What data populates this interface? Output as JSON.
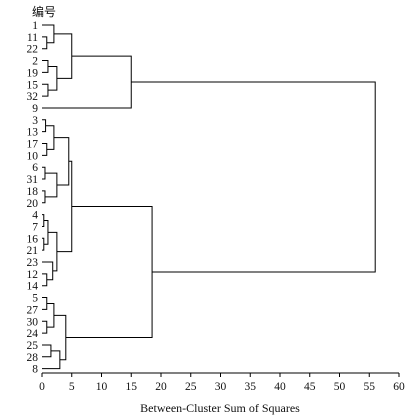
{
  "chart_data": {
    "type": "dendrogram",
    "title": "",
    "ylabel": "编号",
    "xlabel": "Between-Cluster Sum of Squares",
    "xlim": [
      0,
      60
    ],
    "xticks": [
      0,
      5,
      10,
      15,
      20,
      25,
      30,
      35,
      40,
      45,
      50,
      55,
      60
    ],
    "orientation": "horizontal",
    "grid": false,
    "legend": "none",
    "line_color": "#000000",
    "leaves": [
      "1",
      "11",
      "22",
      "2",
      "19",
      "15",
      "32",
      "9",
      "3",
      "13",
      "17",
      "10",
      "6",
      "31",
      "18",
      "20",
      "4",
      "7",
      "16",
      "21",
      "23",
      "12",
      "14",
      "5",
      "27",
      "30",
      "24",
      "25",
      "28",
      "8"
    ],
    "tree": [
      56,
      [
        15,
        [
          5,
          [
            2,
            "1",
            [
              0.8,
              "11",
              "22"
            ]
          ],
          [
            2.5,
            [
              1,
              "2",
              "19"
            ],
            [
              1,
              "15",
              "32"
            ]
          ]
        ],
        "9"
      ],
      [
        18.5,
        [
          5,
          [
            4.5,
            [
              2,
              [
                0.6,
                "3",
                "13"
              ],
              [
                0.8,
                "17",
                "10"
              ]
            ],
            [
              2.5,
              [
                0.5,
                "6",
                "31"
              ],
              [
                0.5,
                "18",
                "20"
              ]
            ]
          ],
          [
            2.5,
            [
              1,
              [
                0.3,
                "4",
                "7"
              ],
              [
                0.3,
                "16",
                "21"
              ]
            ],
            [
              1.8,
              "23",
              [
                0.8,
                "12",
                "14"
              ]
            ]
          ]
        ],
        [
          4,
          [
            2,
            [
              0.8,
              "5",
              "27"
            ],
            [
              0.8,
              "30",
              "24"
            ]
          ],
          [
            3,
            [
              1.5,
              "25",
              "28"
            ],
            "8"
          ]
        ]
      ]
    ]
  }
}
